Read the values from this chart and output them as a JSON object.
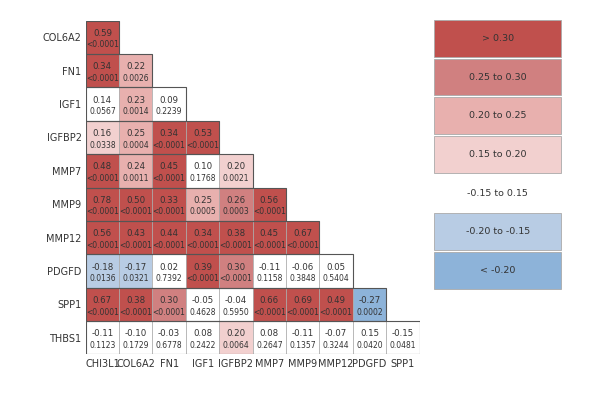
{
  "row_labels": [
    "COL6A2",
    "FN1",
    "IGF1",
    "IGFBP2",
    "MMP7",
    "MMP9",
    "MMP12",
    "PDGFD",
    "SPP1",
    "THBS1"
  ],
  "col_labels": [
    "CHI3L1",
    "COL6A2",
    "FN1",
    "IGF1",
    "IGFBP2",
    "MMP7",
    "MMP9",
    "MMP12",
    "PDGFD",
    "SPP1"
  ],
  "cells": [
    [
      {
        "corr": 0.59,
        "pval": "<0.0001",
        "col": 0,
        "row": 0
      }
    ],
    [
      {
        "corr": 0.34,
        "pval": "<0.0001",
        "col": 0,
        "row": 1
      },
      {
        "corr": 0.22,
        "pval": "0.0026",
        "col": 1,
        "row": 1
      }
    ],
    [
      {
        "corr": 0.14,
        "pval": "0.0567",
        "col": 0,
        "row": 2
      },
      {
        "corr": 0.23,
        "pval": "0.0014",
        "col": 1,
        "row": 2
      },
      {
        "corr": 0.09,
        "pval": "0.2239",
        "col": 2,
        "row": 2
      }
    ],
    [
      {
        "corr": 0.16,
        "pval": "0.0338",
        "col": 0,
        "row": 3
      },
      {
        "corr": 0.25,
        "pval": "0.0004",
        "col": 1,
        "row": 3
      },
      {
        "corr": 0.34,
        "pval": "<0.0001",
        "col": 2,
        "row": 3
      },
      {
        "corr": 0.53,
        "pval": "<0.0001",
        "col": 3,
        "row": 3
      }
    ],
    [
      {
        "corr": 0.48,
        "pval": "<0.0001",
        "col": 0,
        "row": 4
      },
      {
        "corr": 0.24,
        "pval": "0.0011",
        "col": 1,
        "row": 4
      },
      {
        "corr": 0.45,
        "pval": "<0.0001",
        "col": 2,
        "row": 4
      },
      {
        "corr": 0.1,
        "pval": "0.1768",
        "col": 3,
        "row": 4
      },
      {
        "corr": 0.2,
        "pval": "0.0021",
        "col": 4,
        "row": 4
      }
    ],
    [
      {
        "corr": 0.78,
        "pval": "<0.0001",
        "col": 0,
        "row": 5
      },
      {
        "corr": 0.5,
        "pval": "<0.0001",
        "col": 1,
        "row": 5
      },
      {
        "corr": 0.33,
        "pval": "<0.0001",
        "col": 2,
        "row": 5
      },
      {
        "corr": 0.25,
        "pval": "0.0005",
        "col": 3,
        "row": 5
      },
      {
        "corr": 0.26,
        "pval": "0.0003",
        "col": 4,
        "row": 5
      },
      {
        "corr": 0.56,
        "pval": "<0.0001",
        "col": 5,
        "row": 5
      }
    ],
    [
      {
        "corr": 0.56,
        "pval": "<0.0001",
        "col": 0,
        "row": 6
      },
      {
        "corr": 0.43,
        "pval": "<0.0001",
        "col": 1,
        "row": 6
      },
      {
        "corr": 0.44,
        "pval": "<0.0001",
        "col": 2,
        "row": 6
      },
      {
        "corr": 0.34,
        "pval": "<0.0001",
        "col": 3,
        "row": 6
      },
      {
        "corr": 0.38,
        "pval": "<0.0001",
        "col": 4,
        "row": 6
      },
      {
        "corr": 0.45,
        "pval": "<0.0001",
        "col": 5,
        "row": 6
      },
      {
        "corr": 0.67,
        "pval": "<0.0001",
        "col": 6,
        "row": 6
      }
    ],
    [
      {
        "corr": -0.18,
        "pval": "0.0136",
        "col": 0,
        "row": 7
      },
      {
        "corr": -0.17,
        "pval": "0.0321",
        "col": 1,
        "row": 7
      },
      {
        "corr": 0.02,
        "pval": "0.7392",
        "col": 2,
        "row": 7
      },
      {
        "corr": 0.39,
        "pval": "<0.0001",
        "col": 3,
        "row": 7
      },
      {
        "corr": 0.3,
        "pval": "<0.0001",
        "col": 4,
        "row": 7
      },
      {
        "corr": -0.11,
        "pval": "0.1158",
        "col": 5,
        "row": 7
      },
      {
        "corr": -0.06,
        "pval": "0.3848",
        "col": 6,
        "row": 7
      },
      {
        "corr": 0.05,
        "pval": "0.5404",
        "col": 7,
        "row": 7
      }
    ],
    [
      {
        "corr": 0.67,
        "pval": "<0.0001",
        "col": 0,
        "row": 8
      },
      {
        "corr": 0.38,
        "pval": "<0.0001",
        "col": 1,
        "row": 8
      },
      {
        "corr": 0.3,
        "pval": "<0.0001",
        "col": 2,
        "row": 8
      },
      {
        "corr": -0.05,
        "pval": "0.4628",
        "col": 3,
        "row": 8
      },
      {
        "corr": -0.04,
        "pval": "0.5950",
        "col": 4,
        "row": 8
      },
      {
        "corr": 0.66,
        "pval": "<0.0001",
        "col": 5,
        "row": 8
      },
      {
        "corr": 0.69,
        "pval": "<0.0001",
        "col": 6,
        "row": 8
      },
      {
        "corr": 0.49,
        "pval": "<0.0001",
        "col": 7,
        "row": 8
      },
      {
        "corr": -0.27,
        "pval": "0.0002",
        "col": 8,
        "row": 8
      }
    ],
    [
      {
        "corr": -0.11,
        "pval": "0.1123",
        "col": 0,
        "row": 9
      },
      {
        "corr": -0.1,
        "pval": "0.1729",
        "col": 1,
        "row": 9
      },
      {
        "corr": -0.03,
        "pval": "0.6778",
        "col": 2,
        "row": 9
      },
      {
        "corr": 0.08,
        "pval": "0.2422",
        "col": 3,
        "row": 9
      },
      {
        "corr": 0.2,
        "pval": "0.0064",
        "col": 4,
        "row": 9
      },
      {
        "corr": 0.08,
        "pval": "0.2647",
        "col": 5,
        "row": 9
      },
      {
        "corr": -0.11,
        "pval": "0.1357",
        "col": 6,
        "row": 9
      },
      {
        "corr": -0.07,
        "pval": "0.3244",
        "col": 7,
        "row": 9
      },
      {
        "corr": 0.15,
        "pval": "0.0420",
        "col": 8,
        "row": 9
      },
      {
        "corr": -0.15,
        "pval": "0.0481",
        "col": 9,
        "row": 9
      }
    ]
  ],
  "legend_labels": [
    "> 0.30",
    "0.25 to 0.30",
    "0.20 to 0.25",
    "0.15 to 0.20",
    "-0.15 to 0.15",
    "-0.20 to -0.15",
    "< -0.20"
  ],
  "legend_colors": [
    "#c0504d",
    "#d08080",
    "#e8b0ae",
    "#f2d0cf",
    "#ffffff",
    "#b8cce4",
    "#8db3d9"
  ],
  "color_thresholds": [
    0.3,
    0.25,
    0.2,
    0.15,
    -0.15,
    -0.2
  ],
  "bg_color": "#ffffff",
  "cell_border_color": "#aaaaaa",
  "outer_border_color": "#555555",
  "text_color": "#333333",
  "legend_border_color": "#aaaaaa"
}
